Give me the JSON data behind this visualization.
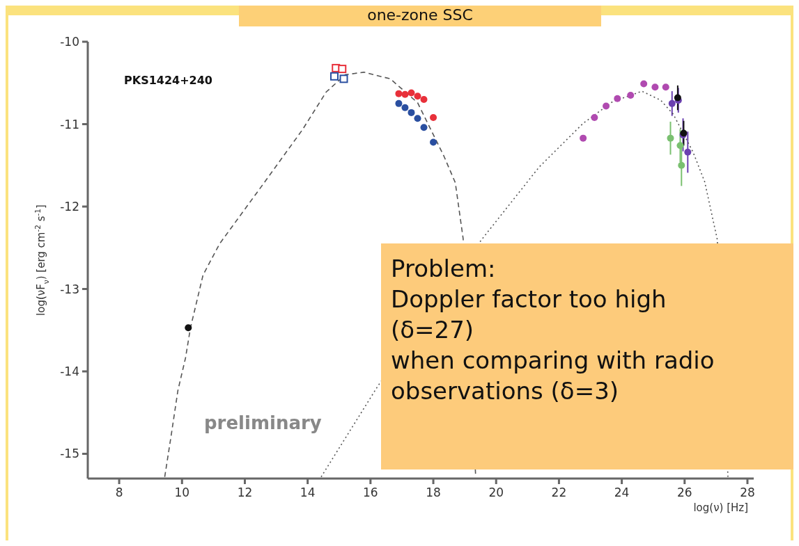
{
  "chart_data": {
    "type": "scatter",
    "title": "one-zone SSC",
    "xlabel": "log(ν) [Hz]",
    "ylabel": "log(νF$_{ν}$) [erg cm$^{-2}$ s$^{-1}$]",
    "xlim": [
      7,
      28.2
    ],
    "ylim": [
      -15.3,
      -10
    ],
    "xticks": [
      8,
      10,
      12,
      14,
      16,
      18,
      20,
      22,
      24,
      26,
      28
    ],
    "yticks": [
      -10,
      -11,
      -12,
      -13,
      -14,
      -15
    ],
    "grid": false,
    "legend": false,
    "series": [
      {
        "type": "line",
        "line_style": "dashed",
        "marker": "none",
        "color": "#555555",
        "x": [
          9.45,
          9.65,
          9.87,
          10.11,
          10.27,
          10.67,
          11.2,
          12.54,
          13.83,
          14.59,
          15.2,
          15.79,
          16.63,
          17.5,
          18.34,
          18.7,
          18.95,
          19.15,
          19.3,
          19.35
        ],
        "values": [
          -15.28,
          -14.79,
          -14.23,
          -13.84,
          -13.47,
          -12.83,
          -12.45,
          -11.75,
          -11.07,
          -10.61,
          -10.4,
          -10.37,
          -10.45,
          -10.74,
          -11.39,
          -11.71,
          -12.39,
          null,
          null,
          -15.28
        ]
      },
      {
        "type": "line",
        "line_style": "dotted",
        "marker": "none",
        "color": "#555555",
        "x": [
          14.43,
          16.23,
          19.52,
          21.37,
          22.77,
          23.7,
          24.64,
          25.24,
          25.64,
          26.27,
          26.64,
          27.04,
          27.3,
          27.38
        ],
        "values": [
          -15.28,
          -14.18,
          -12.41,
          -11.52,
          -10.99,
          -10.73,
          -10.6,
          -10.71,
          -10.88,
          -11.34,
          -11.7,
          -12.4,
          null,
          -15.28
        ]
      },
      {
        "marker": "circle",
        "color": "#111111",
        "x": [
          10.2
        ],
        "values": [
          -13.47
        ]
      },
      {
        "marker": "square",
        "color": "#e8303a",
        "x": [
          14.9,
          15.1
        ],
        "values": [
          -10.32,
          -10.33
        ]
      },
      {
        "marker": "square",
        "color": "#2a4fa0",
        "x": [
          14.85,
          15.15
        ],
        "values": [
          -10.42,
          -10.45
        ]
      },
      {
        "marker": "circle",
        "color": "#e8303a",
        "x": [
          16.9,
          17.1,
          17.3,
          17.5,
          17.7,
          18.0
        ],
        "values": [
          -10.63,
          -10.64,
          -10.62,
          -10.66,
          -10.7,
          -10.92
        ]
      },
      {
        "marker": "circle",
        "color": "#2a4fa0",
        "x": [
          16.9,
          17.1,
          17.3,
          17.5,
          17.7,
          18.0
        ],
        "values": [
          -10.75,
          -10.8,
          -10.86,
          -10.93,
          -11.04,
          -11.22
        ]
      },
      {
        "marker": "circle",
        "color": "#b04ab0",
        "x": [
          22.77,
          23.13,
          23.5,
          23.86,
          24.28,
          24.7,
          25.06,
          25.4
        ],
        "values": [
          -11.17,
          -10.92,
          -10.78,
          -10.69,
          -10.65,
          -10.51,
          -10.55,
          -10.55
        ]
      },
      {
        "marker": "circle",
        "color": "#7ac070",
        "x": [
          25.55,
          25.86,
          25.9
        ],
        "values": [
          -11.17,
          -11.26,
          -11.5
        ],
        "errors": [
          0.2,
          0.2,
          0.25
        ]
      },
      {
        "marker": "circle",
        "color": "#6a40b0",
        "x": [
          25.6,
          25.8,
          25.95,
          26.1
        ],
        "values": [
          -10.75,
          -10.71,
          -11.13,
          -11.34
        ],
        "errors": [
          0.15,
          0.15,
          0.2,
          0.25
        ]
      },
      {
        "marker": "circle",
        "color": "#111111",
        "x": [
          25.78,
          25.97
        ],
        "values": [
          -10.68,
          -11.11
        ],
        "errors": [
          0.15,
          0.15
        ]
      }
    ],
    "annotations": [
      "PKS1424+240",
      "preliminary",
      "Problem:\nDoppler factor too high\n(δ=27)\nwhen comparing with radio\nobservations (δ=3)"
    ]
  }
}
